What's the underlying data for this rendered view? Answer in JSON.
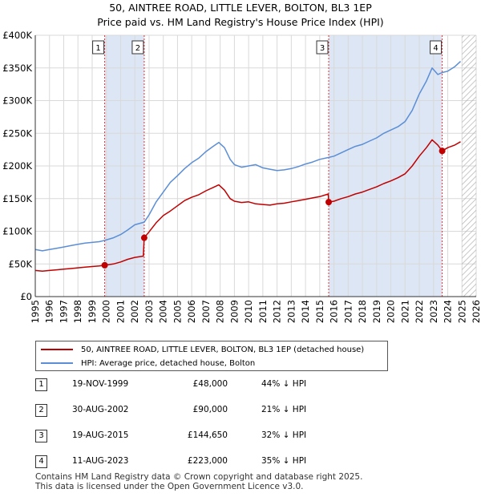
{
  "title": {
    "line1": "50, AINTREE ROAD, LITTLE LEVER, BOLTON, BL3 1EP",
    "line2": "Price paid vs. HM Land Registry's House Price Index (HPI)"
  },
  "colors": {
    "property": "#c00000",
    "hpi": "#5b8ed6",
    "shade": "#dce6f5",
    "marker_line": "#e03030"
  },
  "legend": {
    "property": "50, AINTREE ROAD, LITTLE LEVER, BOLTON, BL3 1EP (detached house)",
    "hpi": "HPI: Average price, detached house, Bolton"
  },
  "transactions": [
    {
      "num": "1",
      "date": "19-NOV-1999",
      "price": "£48,000",
      "hpi": "44% ↓ HPI"
    },
    {
      "num": "2",
      "date": "30-AUG-2002",
      "price": "£90,000",
      "hpi": "21% ↓ HPI"
    },
    {
      "num": "3",
      "date": "19-AUG-2015",
      "price": "£144,650",
      "hpi": "32% ↓ HPI"
    },
    {
      "num": "4",
      "date": "11-AUG-2023",
      "price": "£223,000",
      "hpi": "35% ↓ HPI"
    }
  ],
  "footer": {
    "line1": "Contains HM Land Registry data © Crown copyright and database right 2025.",
    "line2": "This data is licensed under the Open Government Licence v3.0."
  },
  "chart_data": {
    "type": "line",
    "xlim": [
      1995,
      2026
    ],
    "ylim": [
      0,
      400000
    ],
    "x_ticks": [
      1995,
      1996,
      1997,
      1998,
      1999,
      2000,
      2001,
      2002,
      2003,
      2004,
      2005,
      2006,
      2007,
      2008,
      2009,
      2010,
      2011,
      2012,
      2013,
      2014,
      2015,
      2016,
      2017,
      2018,
      2019,
      2020,
      2021,
      2022,
      2023,
      2024,
      2025,
      2026
    ],
    "y_ticks": [
      {
        "value": 0,
        "label": "£0"
      },
      {
        "value": 50000,
        "label": "£50K"
      },
      {
        "value": 100000,
        "label": "£100K"
      },
      {
        "value": 150000,
        "label": "£150K"
      },
      {
        "value": 200000,
        "label": "£200K"
      },
      {
        "value": 250000,
        "label": "£250K"
      },
      {
        "value": 300000,
        "label": "£300K"
      },
      {
        "value": 350000,
        "label": "£350K"
      },
      {
        "value": 400000,
        "label": "£400K"
      }
    ],
    "shaded_periods": [
      [
        1999.88,
        2002.66
      ],
      [
        2015.63,
        2023.61
      ]
    ],
    "hatched_from": 2025.0,
    "sales": [
      {
        "label": "1",
        "x": 1999.88,
        "y": 48000
      },
      {
        "label": "2",
        "x": 2002.66,
        "y": 90000
      },
      {
        "label": "3",
        "x": 2015.63,
        "y": 144650
      },
      {
        "label": "4",
        "x": 2023.61,
        "y": 223000
      }
    ],
    "series": [
      {
        "name": "HPI: Average price, detached house, Bolton",
        "x": [
          1995.0,
          1995.5,
          1996.0,
          1996.5,
          1997.0,
          1997.5,
          1998.0,
          1998.5,
          1999.0,
          1999.5,
          1999.88,
          2000.5,
          2001.0,
          2001.5,
          2002.0,
          2002.66,
          2003.0,
          2003.5,
          2004.0,
          2004.5,
          2005.0,
          2005.5,
          2006.0,
          2006.5,
          2007.0,
          2007.5,
          2007.9,
          2008.3,
          2008.7,
          2009.0,
          2009.5,
          2010.0,
          2010.5,
          2011.0,
          2011.5,
          2012.0,
          2012.5,
          2013.0,
          2013.5,
          2014.0,
          2014.5,
          2015.0,
          2015.63,
          2016.0,
          2016.5,
          2017.0,
          2017.5,
          2018.0,
          2018.5,
          2019.0,
          2019.5,
          2020.0,
          2020.5,
          2021.0,
          2021.5,
          2022.0,
          2022.5,
          2022.9,
          2023.3,
          2023.61,
          2024.0,
          2024.5,
          2024.9
        ],
        "values": [
          72000,
          70000,
          72000,
          74000,
          76000,
          78000,
          80000,
          82000,
          83000,
          84000,
          86000,
          90000,
          95000,
          102000,
          110000,
          114000,
          125000,
          145000,
          160000,
          175000,
          185000,
          196000,
          205000,
          212000,
          222000,
          230000,
          236000,
          228000,
          210000,
          202000,
          198000,
          200000,
          202000,
          197000,
          195000,
          193000,
          194000,
          196000,
          199000,
          203000,
          206000,
          210000,
          213000,
          215000,
          220000,
          225000,
          230000,
          233000,
          238000,
          243000,
          250000,
          255000,
          260000,
          268000,
          285000,
          310000,
          330000,
          350000,
          340000,
          343000,
          345000,
          352000,
          360000
        ]
      },
      {
        "name": "50, AINTREE ROAD, LITTLE LEVER, BOLTON, BL3 1EP (detached house)",
        "x": [
          1995.0,
          1995.5,
          1996.0,
          1996.5,
          1997.0,
          1997.5,
          1998.0,
          1998.5,
          1999.0,
          1999.5,
          1999.88,
          2000.5,
          2001.0,
          2001.5,
          2002.0,
          2002.6,
          2002.66,
          2003.0,
          2003.5,
          2004.0,
          2004.5,
          2005.0,
          2005.5,
          2006.0,
          2006.5,
          2007.0,
          2007.5,
          2007.9,
          2008.3,
          2008.7,
          2009.0,
          2009.5,
          2010.0,
          2010.5,
          2011.0,
          2011.5,
          2012.0,
          2012.5,
          2013.0,
          2013.5,
          2014.0,
          2014.5,
          2015.0,
          2015.6,
          2015.63,
          2016.0,
          2016.5,
          2017.0,
          2017.5,
          2018.0,
          2018.5,
          2019.0,
          2019.5,
          2020.0,
          2020.5,
          2021.0,
          2021.5,
          2022.0,
          2022.5,
          2022.9,
          2023.3,
          2023.61,
          2024.0,
          2024.5,
          2024.9
        ],
        "values": [
          40000,
          39000,
          40000,
          41000,
          42000,
          43000,
          44000,
          45000,
          46000,
          47000,
          48000,
          50000,
          53000,
          57000,
          60000,
          62000,
          90000,
          99000,
          113000,
          124000,
          131000,
          139000,
          147000,
          152000,
          156000,
          162000,
          167000,
          171000,
          163000,
          150000,
          146000,
          144000,
          145000,
          142000,
          141000,
          140000,
          142000,
          143000,
          145000,
          147000,
          149000,
          151000,
          153000,
          157000,
          144650,
          146000,
          150000,
          153000,
          157000,
          160000,
          164000,
          168000,
          173000,
          177000,
          182000,
          188000,
          200000,
          215000,
          228000,
          240000,
          232000,
          223000,
          228000,
          232000,
          237000
        ]
      }
    ]
  }
}
